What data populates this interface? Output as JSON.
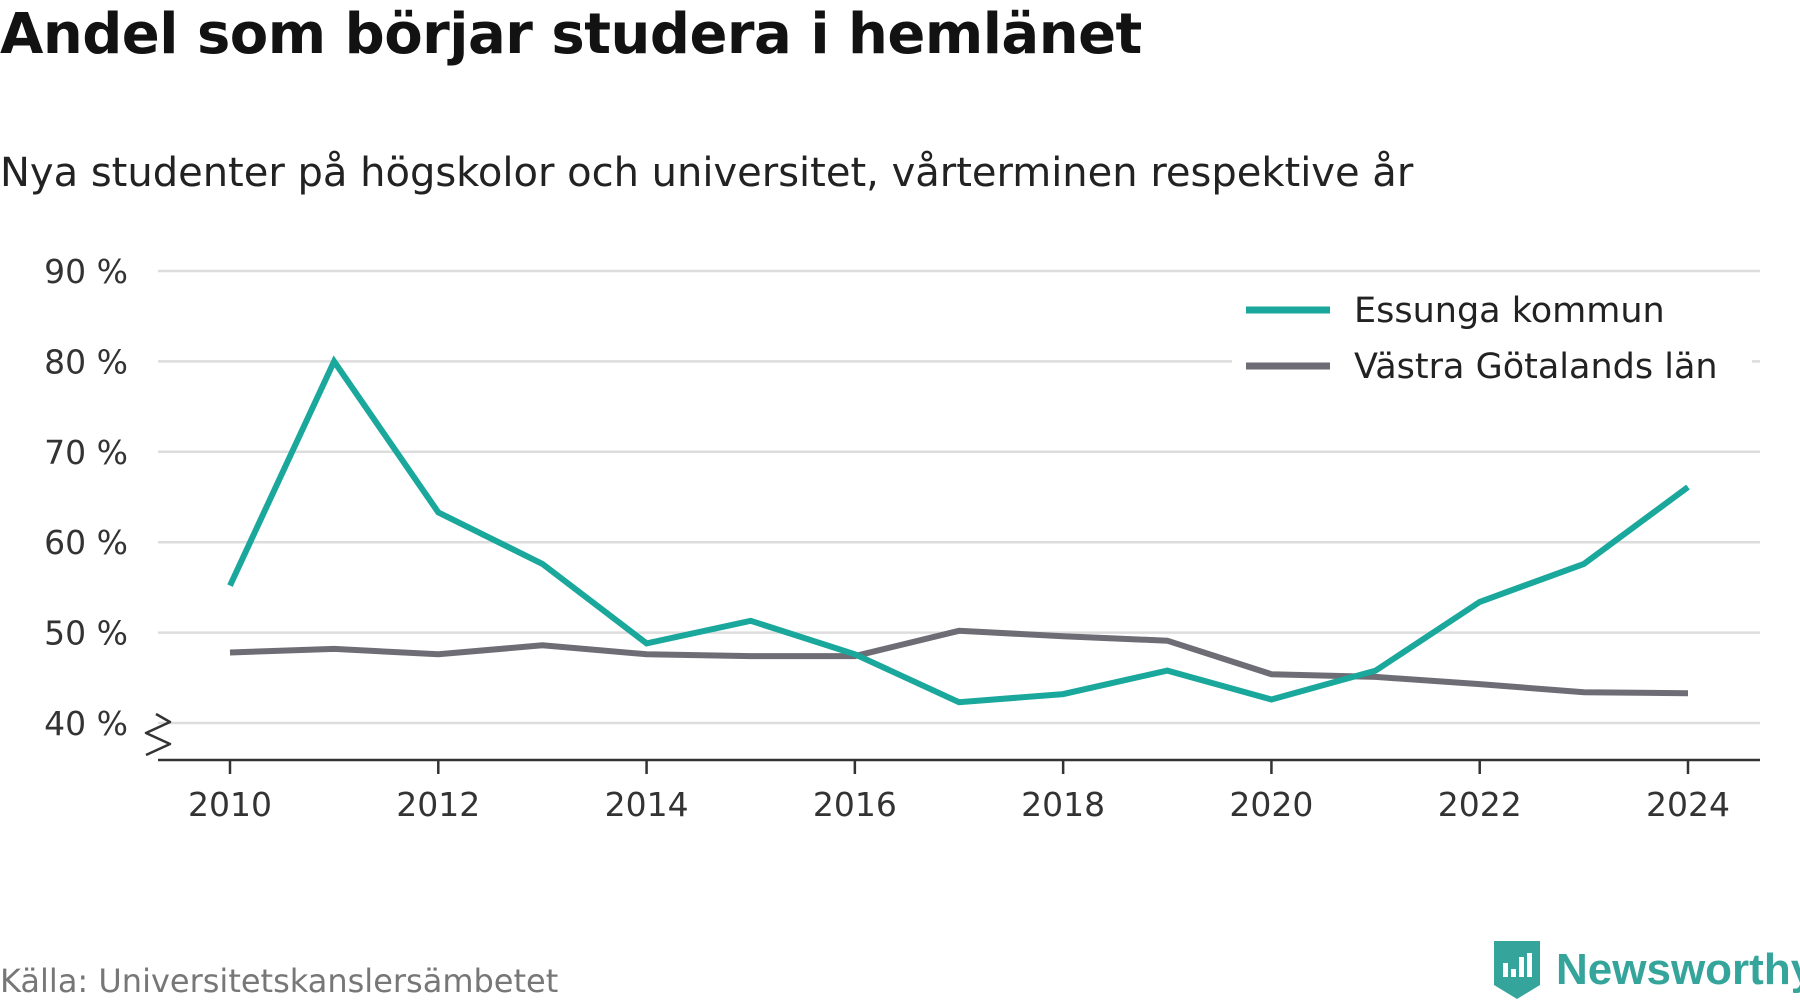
{
  "title": "Andel som börjar studera i hemlänet",
  "subtitle": "Nya studenter på högskolor och universitet, vårterminen respektive år",
  "source": "Källa: Universitetskanslersämbetet",
  "brand": {
    "name": "Newsworthy",
    "icon": "newsworthy-logo-icon"
  },
  "colors": {
    "essunga": "#1aa79c",
    "vastra_gotaland": "#6e6d75",
    "grid": "#dddddd",
    "axis": "#333333"
  },
  "chart_data": {
    "type": "line",
    "title": "Andel som börjar studera i hemlänet",
    "subtitle": "Nya studenter på högskolor och universitet, vårterminen respektive år",
    "x": [
      2010,
      2011,
      2012,
      2013,
      2014,
      2015,
      2016,
      2017,
      2018,
      2019,
      2020,
      2021,
      2022,
      2023,
      2024
    ],
    "x_ticks": [
      "2010",
      "2012",
      "2014",
      "2016",
      "2018",
      "2020",
      "2022",
      "2024"
    ],
    "y_ticks": [
      "40 %",
      "50 %",
      "60 %",
      "70 %",
      "80 %",
      "90 %"
    ],
    "ylim": [
      40,
      90
    ],
    "y_axis_break": true,
    "grid": true,
    "legend_position": "top-right",
    "series": [
      {
        "name": "Essunga kommun",
        "values": [
          55.2,
          80.0,
          63.3,
          57.6,
          48.8,
          51.3,
          47.6,
          42.3,
          43.2,
          45.8,
          42.6,
          45.8,
          53.4,
          57.6,
          66.1
        ]
      },
      {
        "name": "Västra Götalands län",
        "values": [
          47.8,
          48.2,
          47.6,
          48.6,
          47.6,
          47.4,
          47.4,
          50.2,
          49.6,
          49.1,
          45.4,
          45.1,
          44.3,
          43.4,
          43.3
        ]
      }
    ]
  }
}
